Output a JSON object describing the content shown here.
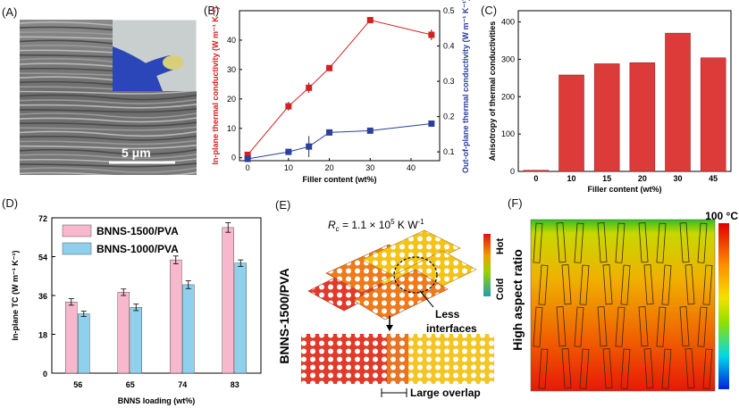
{
  "panels": {
    "a": {
      "label": "(A)",
      "scale": "5 μm"
    },
    "b": {
      "label": "(B)"
    },
    "c": {
      "label": "(C)"
    },
    "d": {
      "label": "(D)"
    },
    "e": {
      "label": "(E)",
      "rc_prefix": "R",
      "rc_sub": "c",
      "rc_value": " = 1.1 × 10",
      "rc_exp": "5",
      "rc_unit": " K W",
      "rc_unit_exp": "-1",
      "vertical_label": "BNNS-1500/PVA",
      "hot": "Hot",
      "cold": "Cold",
      "less": "Less",
      "interfaces": "interfaces",
      "overlap": "Large overlap"
    },
    "f": {
      "label": "(F)",
      "vertical_label": "High aspect ratio",
      "temp": "100 °C"
    }
  },
  "chart_data": [
    {
      "id": "B",
      "type": "line",
      "xlabel": "Filler content (wt%)",
      "ylabel": "In-plane thermal conductivity (W m⁻¹ K⁻¹)",
      "y2label": "Out-of-plane thermal conductivity (W m⁻¹ K⁻¹)",
      "xlim": [
        -2,
        47
      ],
      "ylim": [
        -1,
        50
      ],
      "y2lim": [
        0.075,
        0.5
      ],
      "xticks": [
        0,
        10,
        20,
        30,
        40
      ],
      "yticks": [
        0,
        10,
        20,
        30,
        40
      ],
      "y2ticks": [
        0.1,
        0.2,
        0.3,
        0.4,
        0.5
      ],
      "series": [
        {
          "name": "In-plane",
          "axis": "left",
          "color": "#d42020",
          "x": [
            0,
            10,
            15,
            20,
            30,
            45
          ],
          "values": [
            1.0,
            17.5,
            23.8,
            30.5,
            46.8,
            41.8
          ],
          "err": [
            0.8,
            1.5,
            1.8,
            1.0,
            0.5,
            1.8
          ]
        },
        {
          "name": "Out-of-plane",
          "axis": "right",
          "color": "#2b3f9c",
          "x": [
            0,
            10,
            15,
            20,
            30,
            45
          ],
          "values": [
            0.08,
            0.1,
            0.115,
            0.155,
            0.16,
            0.18
          ],
          "err": [
            0.003,
            0.006,
            0.03,
            0.006,
            0.005,
            0.006
          ]
        }
      ]
    },
    {
      "id": "C",
      "type": "bar",
      "xlabel": "Filler content (wt%)",
      "ylabel": "Anisotropy of thermal conductivities",
      "categories": [
        "0",
        "10",
        "15",
        "20",
        "30",
        "45"
      ],
      "values": [
        3,
        258,
        288,
        291,
        370,
        304
      ],
      "ylim": [
        0,
        430
      ],
      "yticks": [
        0,
        100,
        200,
        300,
        400
      ],
      "color": "#dd3a3a"
    },
    {
      "id": "D",
      "type": "bar",
      "xlabel": "BNNS loading (wt%)",
      "ylabel": "In-plane TC (W m⁻¹ K⁻¹)",
      "categories": [
        "56",
        "65",
        "74",
        "83"
      ],
      "ylim": [
        0,
        72
      ],
      "yticks": [
        0,
        18,
        36,
        54,
        72
      ],
      "series": [
        {
          "name": "BNNS-1500/PVA",
          "color": "#f7b8cd",
          "values": [
            33,
            37.5,
            52.5,
            67.5
          ],
          "err": [
            1.5,
            1.5,
            1.8,
            2.2
          ]
        },
        {
          "name": "BNNS-1000/PVA",
          "color": "#8fd0ec",
          "values": [
            27.5,
            30.5,
            41,
            51
          ],
          "err": [
            1.2,
            1.5,
            1.8,
            1.5
          ]
        }
      ]
    }
  ]
}
